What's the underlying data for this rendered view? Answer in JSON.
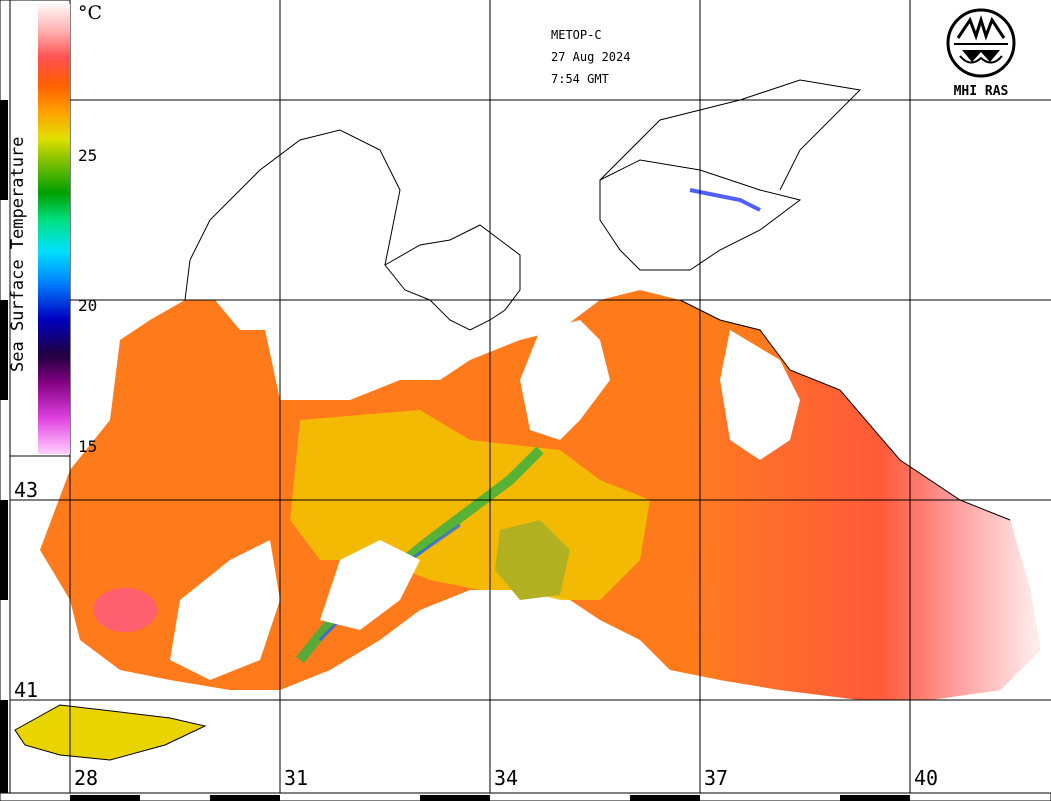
{
  "header": {
    "satellite": "METOP-C",
    "date": "27 Aug 2024",
    "time": "7:54 GMT"
  },
  "logo": {
    "text": "MHI RAS",
    "icon": "mhi-ras-logo-icon"
  },
  "colorbar": {
    "title": "Sea Surface Temperature",
    "unit": "°C",
    "ticks": [
      "25",
      "20",
      "15"
    ],
    "colors": [
      "#ffd0ff",
      "#e040e0",
      "#800080",
      "#200040",
      "#0000c0",
      "#0080ff",
      "#00e0ff",
      "#00e080",
      "#00a000",
      "#80c000",
      "#e0e000",
      "#ffa000",
      "#ff6000",
      "#ff5050",
      "#ffb0b0",
      "#fff8f8"
    ]
  },
  "axes": {
    "longitude_labels": [
      "28",
      "31",
      "34",
      "37",
      "40"
    ],
    "latitude_labels": [
      "43",
      "41"
    ]
  },
  "map": {
    "region": "Black Sea",
    "variable": "sea surface temperature"
  }
}
